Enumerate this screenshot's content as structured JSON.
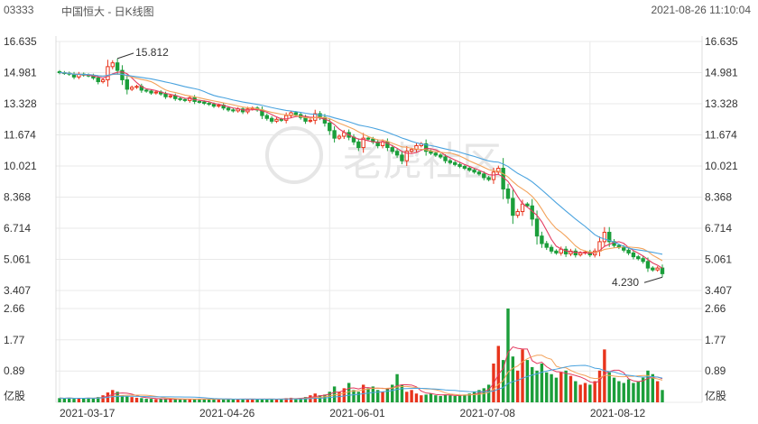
{
  "header": {
    "code": "03333",
    "title": "中国恒大 - 日K线图",
    "datetime": "2021-08-26 11:10:04"
  },
  "watermark": "老虎社区",
  "colors": {
    "up": "#e8341c",
    "down": "#1b9e3a",
    "ma5": "#e33a5f",
    "ma10": "#f3a25a",
    "ma20": "#4aa3df",
    "grid": "#e9e9e9"
  },
  "chart_data": {
    "type": "candlestick",
    "price_ticks": [
      "16.635",
      "14.981",
      "13.328",
      "11.674",
      "10.021",
      "8.368",
      "6.714",
      "5.061",
      "3.407"
    ],
    "price_range": [
      3.407,
      16.635
    ],
    "volume_ticks": [
      "2.66",
      "1.77",
      "0.89",
      "亿股"
    ],
    "volume_range": [
      0,
      2.66
    ],
    "x_labels": [
      "2021-03-17",
      "2021-04-26",
      "2021-06-01",
      "2021-07-08",
      "2021-08-12"
    ],
    "annotations": {
      "high": "15.812",
      "low": "4.230"
    },
    "close": [
      14.98,
      14.95,
      14.9,
      14.75,
      14.9,
      14.85,
      14.82,
      14.7,
      14.5,
      14.6,
      15.3,
      15.5,
      15.1,
      14.6,
      14.1,
      14.2,
      14.25,
      14.05,
      14.0,
      13.9,
      13.95,
      13.85,
      13.7,
      13.75,
      13.6,
      13.55,
      13.5,
      13.65,
      13.45,
      13.42,
      13.35,
      13.3,
      13.2,
      13.25,
      13.1,
      13.0,
      12.95,
      13.05,
      12.9,
      13.05,
      13.1,
      13.0,
      12.7,
      12.55,
      12.4,
      12.5,
      12.45,
      12.7,
      12.85,
      12.75,
      12.6,
      12.4,
      12.45,
      12.8,
      12.6,
      12.3,
      11.9,
      11.5,
      11.6,
      11.8,
      11.55,
      11.3,
      11.0,
      11.5,
      11.45,
      11.3,
      11.1,
      11.3,
      11.0,
      10.8,
      10.6,
      10.3,
      10.8,
      10.9,
      11.1,
      11.2,
      10.8,
      10.7,
      10.6,
      10.5,
      10.3,
      10.2,
      10.1,
      10.0,
      9.9,
      9.8,
      9.7,
      9.6,
      9.4,
      9.3,
      9.7,
      9.9,
      8.8,
      8.3,
      7.4,
      7.6,
      8.0,
      7.9,
      7.2,
      6.3,
      5.9,
      5.7,
      5.5,
      5.4,
      5.6,
      5.35,
      5.5,
      5.3,
      5.4,
      5.45,
      5.3,
      5.5,
      6.0,
      6.5,
      6.0,
      5.8,
      5.7,
      5.55,
      5.4,
      5.2,
      5.1,
      4.95,
      4.6,
      4.5,
      4.6,
      4.3
    ],
    "volume": [
      0.12,
      0.11,
      0.13,
      0.1,
      0.12,
      0.11,
      0.13,
      0.12,
      0.15,
      0.2,
      0.28,
      0.35,
      0.3,
      0.2,
      0.17,
      0.15,
      0.13,
      0.12,
      0.1,
      0.1,
      0.09,
      0.1,
      0.09,
      0.1,
      0.09,
      0.08,
      0.09,
      0.1,
      0.09,
      0.1,
      0.08,
      0.09,
      0.1,
      0.08,
      0.09,
      0.1,
      0.08,
      0.09,
      0.1,
      0.09,
      0.1,
      0.08,
      0.1,
      0.09,
      0.1,
      0.08,
      0.1,
      0.12,
      0.13,
      0.1,
      0.12,
      0.15,
      0.2,
      0.25,
      0.2,
      0.22,
      0.3,
      0.45,
      0.3,
      0.4,
      0.55,
      0.35,
      0.3,
      0.5,
      0.4,
      0.45,
      0.35,
      0.3,
      0.4,
      0.5,
      0.8,
      0.5,
      0.3,
      0.35,
      0.25,
      0.2,
      0.22,
      0.25,
      0.2,
      0.18,
      0.22,
      0.2,
      0.18,
      0.2,
      0.22,
      0.25,
      0.3,
      0.35,
      0.4,
      0.5,
      1.1,
      1.6,
      1.2,
      2.66,
      1.3,
      0.9,
      1.5,
      1.2,
      1.0,
      0.9,
      1.1,
      0.85,
      0.8,
      0.7,
      0.85,
      0.9,
      0.75,
      0.6,
      0.5,
      0.55,
      0.5,
      0.6,
      0.9,
      1.5,
      0.85,
      0.7,
      0.6,
      0.55,
      0.65,
      0.55,
      0.6,
      0.7,
      0.9,
      0.8,
      0.6,
      0.35
    ]
  }
}
